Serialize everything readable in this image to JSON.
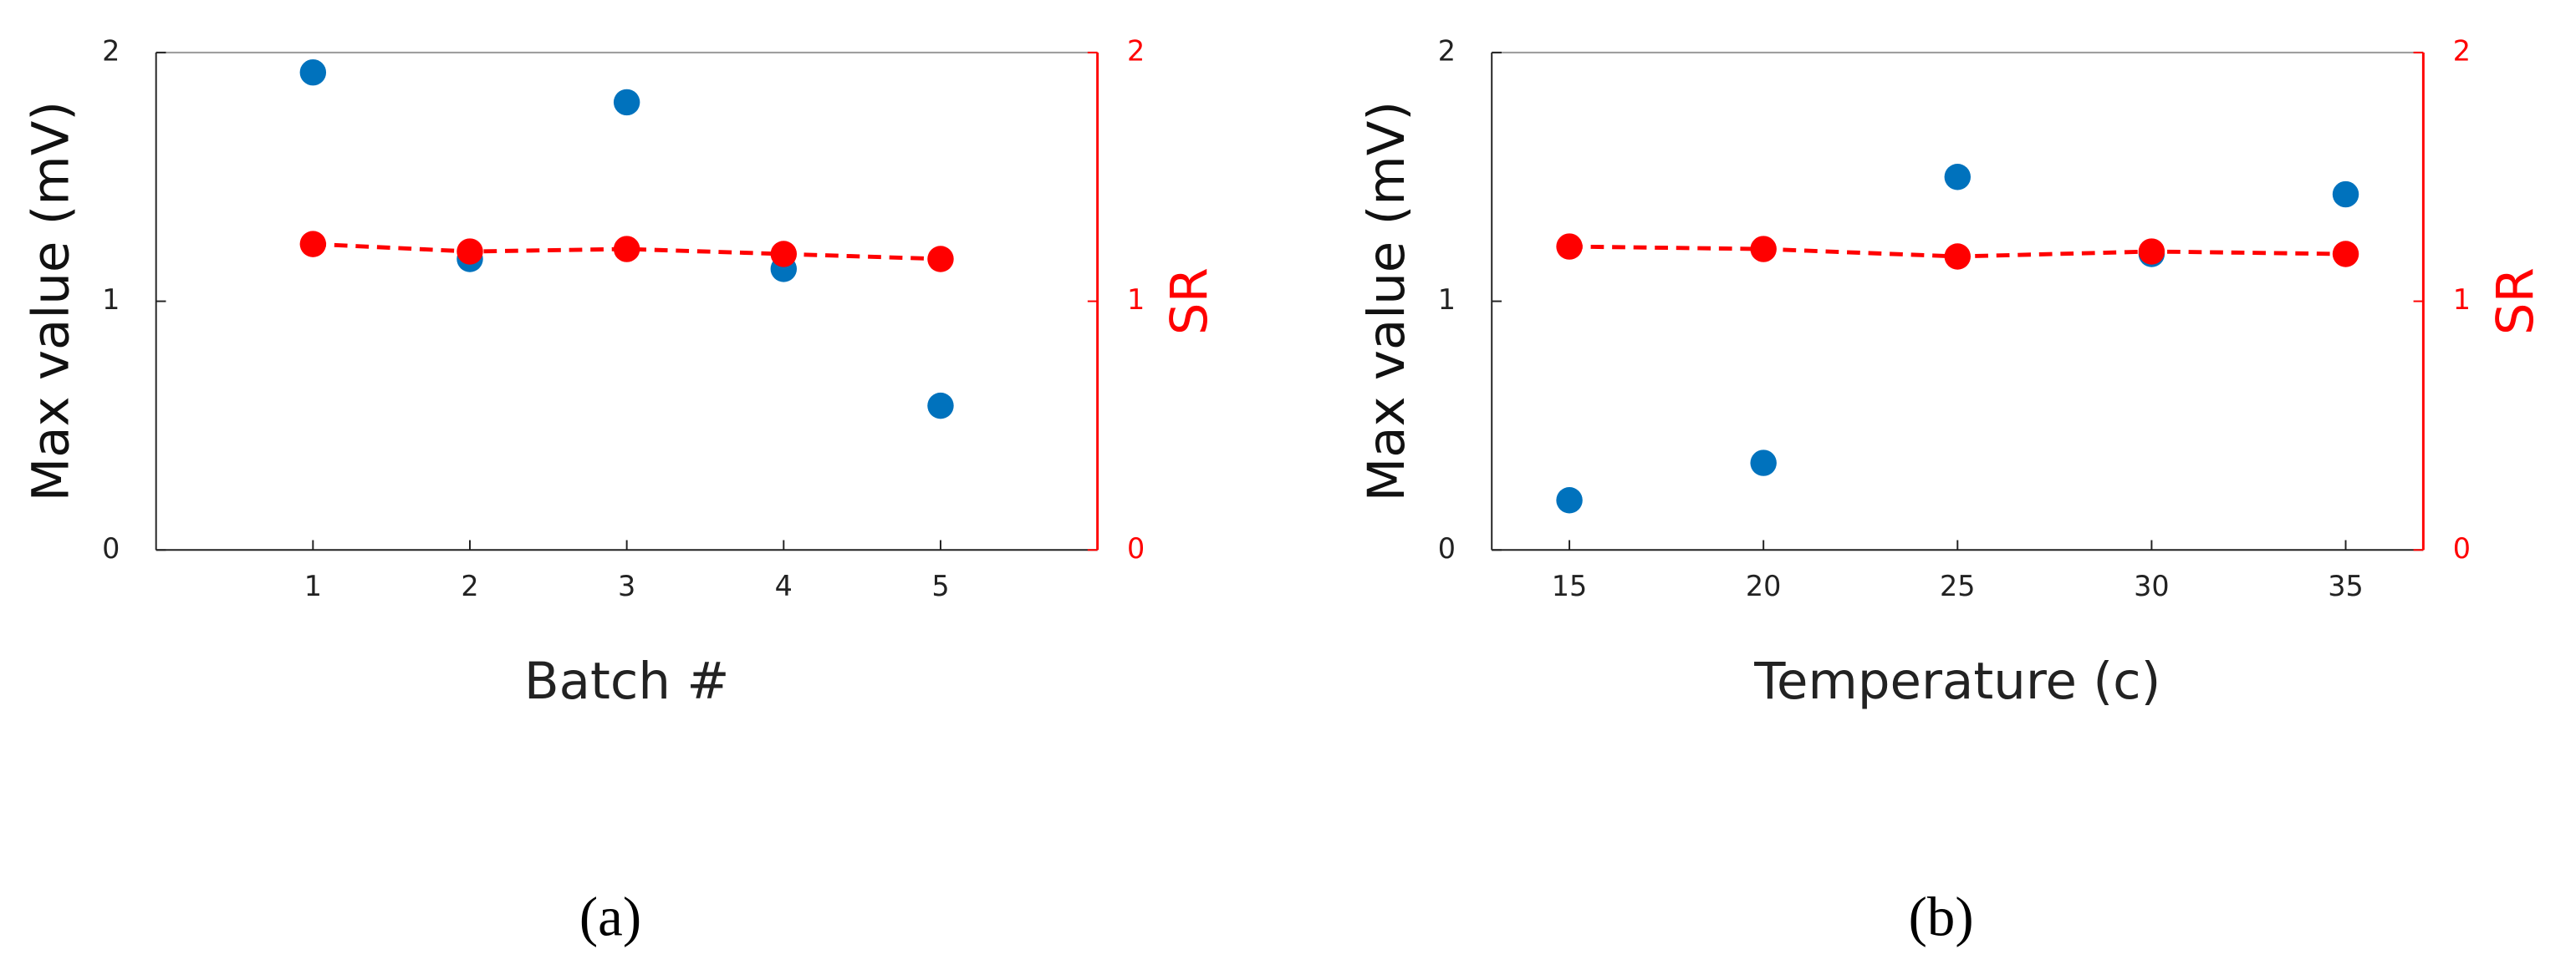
{
  "chart_data": [
    {
      "type": "scatter",
      "xlabel": "Batch #",
      "ylabel": "Max value (mV)",
      "y2label": "SR",
      "caption": "(a)",
      "x": [
        1,
        2,
        3,
        4,
        5
      ],
      "xlim": [
        0,
        6
      ],
      "xticks": [
        1,
        2,
        3,
        4,
        5
      ],
      "ylim": [
        0,
        2
      ],
      "yticks": [
        0,
        1,
        2
      ],
      "y2lim": [
        0,
        2
      ],
      "y2ticks": [
        0,
        1,
        2
      ],
      "y2color": "#ff0000",
      "series": [
        {
          "color": "#0072bd",
          "values": [
            1.92,
            1.17,
            1.8,
            1.13,
            0.58
          ]
        },
        {
          "color": "#ff0000",
          "axis": "y2",
          "line": "dashed",
          "values": [
            1.23,
            1.2,
            1.21,
            1.19,
            1.17
          ]
        }
      ]
    },
    {
      "type": "scatter",
      "xlabel": "Temperature (c)",
      "ylabel": "Max value (mV)",
      "y2label": "SR",
      "caption": "(b)",
      "x": [
        15,
        20,
        25,
        30,
        35
      ],
      "xlim": [
        13,
        37
      ],
      "xticks": [
        15,
        20,
        25,
        30,
        35
      ],
      "ylim": [
        0,
        2
      ],
      "yticks": [
        0,
        1,
        2
      ],
      "y2lim": [
        0,
        2
      ],
      "y2ticks": [
        0,
        1,
        2
      ],
      "y2color": "#ff0000",
      "series": [
        {
          "color": "#0072bd",
          "values": [
            0.2,
            0.35,
            1.5,
            1.19,
            1.43
          ]
        },
        {
          "color": "#ff0000",
          "axis": "y2",
          "line": "dashed",
          "values": [
            1.22,
            1.21,
            1.18,
            1.2,
            1.19
          ]
        }
      ]
    }
  ]
}
